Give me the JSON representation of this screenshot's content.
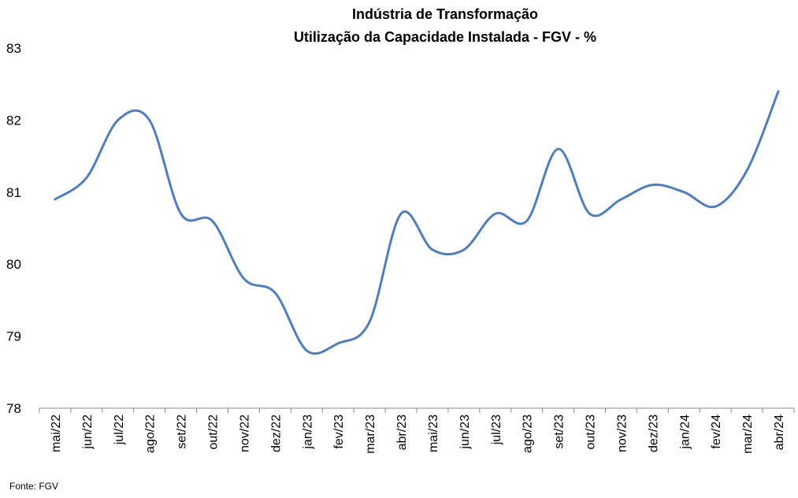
{
  "chart_data": {
    "type": "line",
    "title_lines": [
      "Indústria de Transformação",
      "Utilização da Capacidade Instalada - FGV - %"
    ],
    "xlabel": "",
    "ylabel": "",
    "categories": [
      "mai/22",
      "jun/22",
      "jul/22",
      "ago/22",
      "set/22",
      "out/22",
      "nov/22",
      "dez/22",
      "jan/23",
      "fev/23",
      "mar/23",
      "abr/23",
      "mai/23",
      "jun/23",
      "jul/23",
      "ago/23",
      "set/23",
      "out/23",
      "nov/23",
      "dez/23",
      "jan/24",
      "fev/24",
      "mar/24",
      "abr/24"
    ],
    "series": [
      {
        "values": [
          80.9,
          81.2,
          82.0,
          82.0,
          80.7,
          80.6,
          79.8,
          79.6,
          78.8,
          78.9,
          79.2,
          80.7,
          80.2,
          80.2,
          80.7,
          80.6,
          81.6,
          80.7,
          80.9,
          81.1,
          81.0,
          80.8,
          81.3,
          82.4
        ],
        "color": "#4f7ebb"
      }
    ],
    "ylim": [
      78,
      83
    ],
    "yticks": [
      "78",
      "79",
      "80",
      "81",
      "82",
      "83"
    ],
    "grid": false,
    "legend": "none",
    "x_tick_rotation": "vertical",
    "source_note": "Fonte: FGV"
  }
}
